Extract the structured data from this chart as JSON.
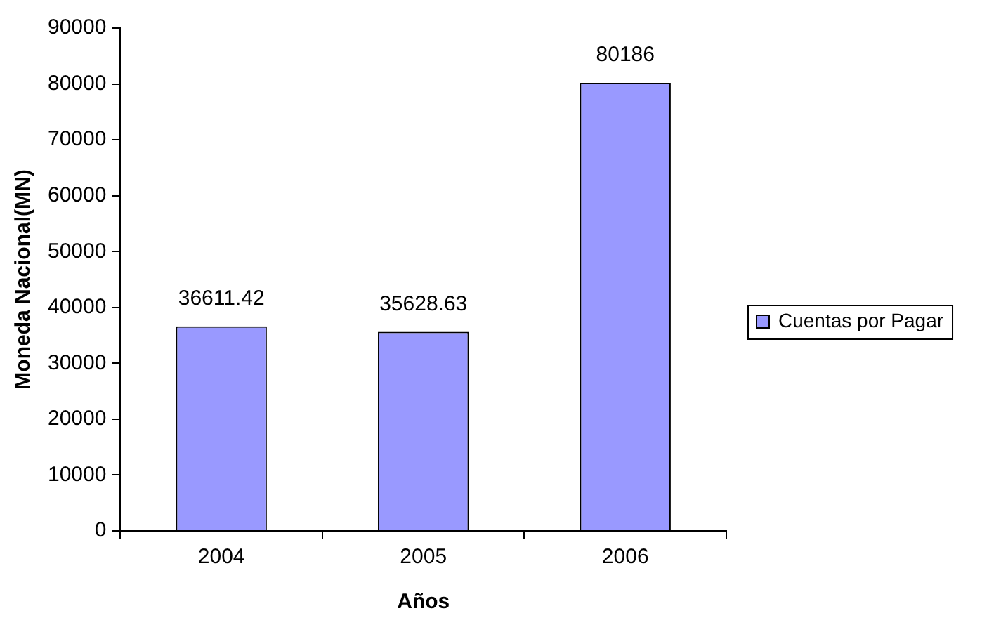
{
  "chart_data": {
    "type": "bar",
    "xlabel": "Años",
    "ylabel": "Moneda Nacional(MN)",
    "categories": [
      "2004",
      "2005",
      "2006"
    ],
    "series": [
      {
        "name": "Cuentas por Pagar",
        "color": "#9999ff",
        "values": [
          36611.42,
          35628.63,
          80186
        ]
      }
    ],
    "ylim": [
      0,
      90000
    ],
    "yticks": [
      0,
      10000,
      20000,
      30000,
      40000,
      50000,
      60000,
      70000,
      80000,
      90000
    ],
    "data_labels": true,
    "legend": "right",
    "grid": false
  }
}
